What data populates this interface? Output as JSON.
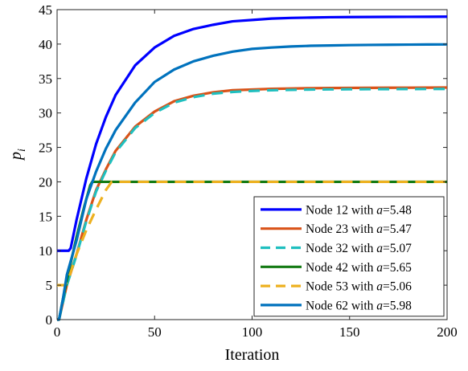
{
  "chart_data": {
    "type": "line",
    "xlabel": "Iteration",
    "ylabel": "p",
    "ylabel_sub": "i",
    "xlim": [
      0,
      200
    ],
    "ylim": [
      0,
      45
    ],
    "xticks": [
      0,
      50,
      100,
      150,
      200
    ],
    "yticks": [
      0,
      5,
      10,
      15,
      20,
      25,
      30,
      35,
      40,
      45
    ],
    "grid": false,
    "legend_position": "bottom-right",
    "series": [
      {
        "name": "Node 12 with a=5.48",
        "legend_prefix": "Node 12 with ",
        "legend_var": "a",
        "legend_suffix": "=5.48",
        "color": "#0000ff",
        "dash": false,
        "x": [
          0,
          6,
          7,
          10,
          15,
          20,
          25,
          30,
          40,
          50,
          60,
          70,
          80,
          90,
          100,
          110,
          120,
          130,
          140,
          150,
          160,
          170,
          180,
          190,
          200
        ],
        "y": [
          10,
          10,
          10.4,
          14.5,
          20.5,
          25.5,
          29.4,
          32.6,
          36.9,
          39.5,
          41.2,
          42.2,
          42.8,
          43.3,
          43.5,
          43.7,
          43.8,
          43.85,
          43.9,
          43.92,
          43.94,
          43.95,
          43.96,
          43.97,
          43.98
        ]
      },
      {
        "name": "Node 23 with a=5.47",
        "legend_prefix": "Node 23 with ",
        "legend_var": "a",
        "legend_suffix": "=5.47",
        "color": "#d95319",
        "dash": false,
        "x": [
          0,
          1,
          3,
          5,
          10,
          15,
          20,
          25,
          30,
          40,
          50,
          60,
          70,
          80,
          90,
          100,
          110,
          120,
          130,
          140,
          150,
          160,
          170,
          180,
          190,
          200
        ],
        "y": [
          0,
          0,
          2.5,
          5,
          9.5,
          14.5,
          18.8,
          21.8,
          24.5,
          28.0,
          30.2,
          31.7,
          32.5,
          33.0,
          33.3,
          33.4,
          33.5,
          33.55,
          33.6,
          33.62,
          33.64,
          33.65,
          33.66,
          33.67,
          33.68,
          33.69
        ]
      },
      {
        "name": "Node 32 with a=5.07",
        "legend_prefix": "Node 32 with ",
        "legend_var": "a",
        "legend_suffix": "=5.07",
        "color": "#1fbfbf",
        "dash": true,
        "x": [
          0,
          1,
          3,
          5,
          10,
          15,
          20,
          25,
          30,
          40,
          50,
          60,
          70,
          80,
          90,
          100,
          110,
          120,
          130,
          140,
          150,
          160,
          170,
          180,
          190,
          200
        ],
        "y": [
          0,
          0,
          2.5,
          5,
          9.4,
          14.3,
          18.6,
          21.6,
          24.3,
          27.8,
          30.0,
          31.5,
          32.3,
          32.8,
          33.05,
          33.2,
          33.3,
          33.35,
          33.4,
          33.42,
          33.44,
          33.45,
          33.46,
          33.47,
          33.48,
          33.49
        ]
      },
      {
        "name": "Node 42 with a=5.65",
        "legend_prefix": "Node 42 with ",
        "legend_var": "a",
        "legend_suffix": "=5.65",
        "color": "#137a13",
        "dash": false,
        "x": [
          0,
          1,
          3,
          6,
          10,
          14,
          17,
          18,
          200
        ],
        "y": [
          0,
          0,
          3,
          7,
          12,
          16.5,
          19.5,
          20,
          20
        ]
      },
      {
        "name": "Node 53 with a=5.06",
        "legend_prefix": "Node 53 with ",
        "legend_var": "a",
        "legend_suffix": "=5.06",
        "color": "#edb120",
        "dash": true,
        "x": [
          0,
          4,
          6,
          10,
          15,
          20,
          25,
          28,
          200
        ],
        "y": [
          5,
          5,
          6,
          9.5,
          13,
          16,
          18.8,
          20,
          20
        ]
      },
      {
        "name": "Node 62 with a=5.98",
        "legend_prefix": "Node 62 with ",
        "legend_var": "a",
        "legend_suffix": "=5.98",
        "color": "#0072bd",
        "dash": false,
        "x": [
          0,
          1,
          3,
          5,
          10,
          15,
          20,
          25,
          30,
          40,
          50,
          60,
          70,
          80,
          90,
          100,
          110,
          120,
          130,
          140,
          150,
          160,
          170,
          180,
          190,
          200
        ],
        "y": [
          0,
          0,
          3,
          6.5,
          11.5,
          17.5,
          21.5,
          24.8,
          27.5,
          31.5,
          34.5,
          36.3,
          37.5,
          38.3,
          38.9,
          39.3,
          39.5,
          39.65,
          39.75,
          39.8,
          39.85,
          39.88,
          39.9,
          39.92,
          39.94,
          39.95
        ]
      }
    ]
  }
}
